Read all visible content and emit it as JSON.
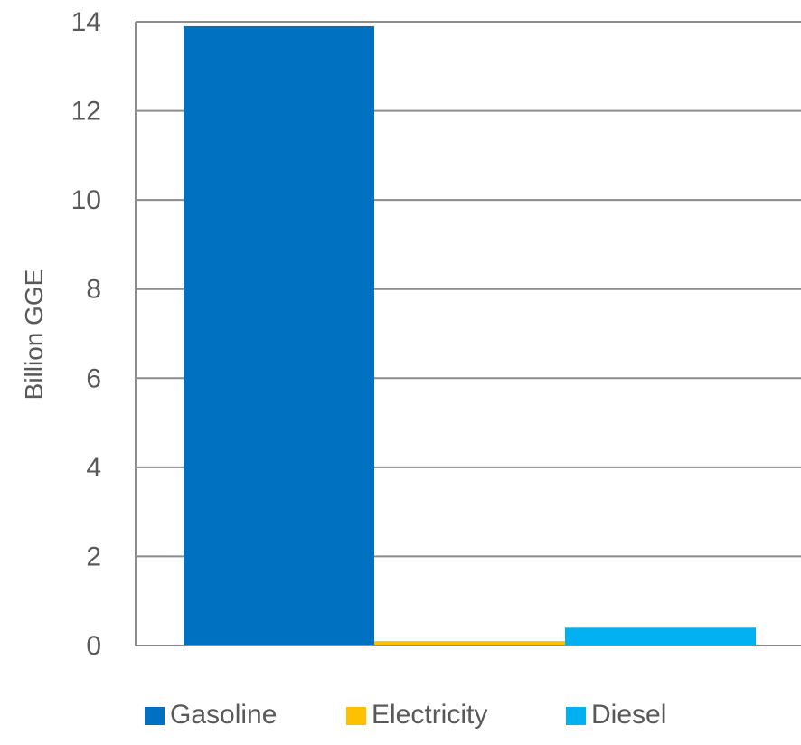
{
  "chart_data": {
    "type": "bar",
    "title": "",
    "xlabel": "",
    "ylabel": "Billion GGE",
    "ylim": [
      0,
      14
    ],
    "yticks": [
      0,
      2,
      4,
      6,
      8,
      10,
      12,
      14
    ],
    "grid": true,
    "legend_position": "bottom",
    "series": [
      {
        "name": "Gasoline",
        "values": [
          13.9
        ],
        "color": "#0070C0"
      },
      {
        "name": "Electricity",
        "values": [
          0.1
        ],
        "color": "#FFC000"
      },
      {
        "name": "Diesel",
        "values": [
          0.4
        ],
        "color": "#00B0F0"
      }
    ]
  }
}
